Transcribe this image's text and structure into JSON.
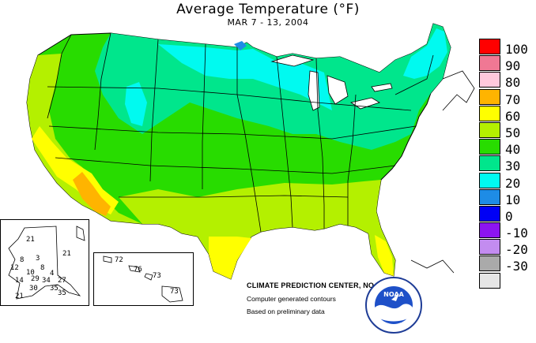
{
  "header": {
    "title": "Average Temperature (°F)",
    "date_range": "MAR 7 - 13, 2004"
  },
  "legend": {
    "levels": [
      {
        "label": "100",
        "color": "#ff0000"
      },
      {
        "label": "90",
        "color": "#f07894"
      },
      {
        "label": "80",
        "color": "#ffc8dc"
      },
      {
        "label": "70",
        "color": "#ffb400"
      },
      {
        "label": "60",
        "color": "#ffff00"
      },
      {
        "label": "50",
        "color": "#b4f000"
      },
      {
        "label": "40",
        "color": "#28dc00"
      },
      {
        "label": "30",
        "color": "#00e68c"
      },
      {
        "label": "20",
        "color": "#00faf0"
      },
      {
        "label": "10",
        "color": "#1e8ce6"
      },
      {
        "label": "0",
        "color": "#0000f5"
      },
      {
        "label": "-10",
        "color": "#8c14f0"
      },
      {
        "label": "-20",
        "color": "#c38cf0"
      },
      {
        "label": "-30",
        "color": "#aaaaaa"
      },
      {
        "label": "",
        "color": "#e6e6e6"
      }
    ]
  },
  "alaska_inset": {
    "values": [
      "21",
      "8",
      "12",
      "3",
      "8",
      "21",
      "10",
      "4",
      "14",
      "29",
      "34",
      "27",
      "30",
      "35",
      "21",
      "35"
    ]
  },
  "hawaii_inset": {
    "values": [
      "72",
      "76",
      "73",
      "73"
    ]
  },
  "credits": {
    "center": "CLIMATE PREDICTION CENTER, NOAA",
    "line1": "Computer generated contours",
    "line2": "Based on preliminary data"
  },
  "logo": {
    "text": "NOAA"
  }
}
